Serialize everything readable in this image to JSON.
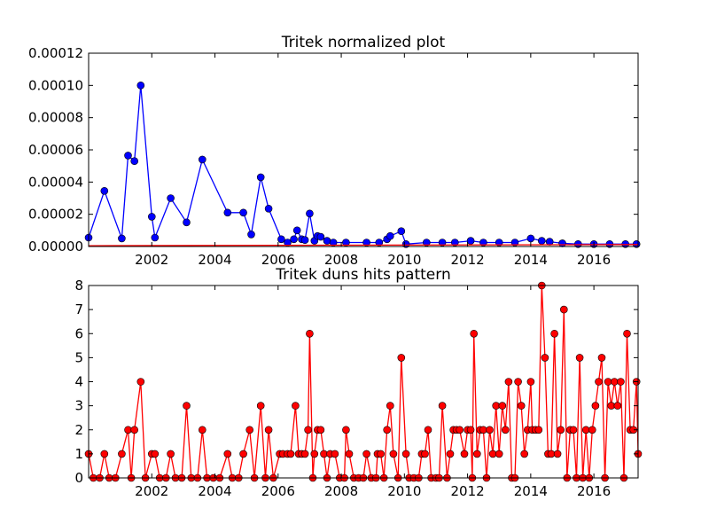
{
  "chart_data": [
    {
      "type": "line",
      "title": "Tritek normalized plot",
      "xlim": [
        2000.0,
        2017.4
      ],
      "ylim": [
        0,
        0.00012
      ],
      "xticks": [
        2002,
        2004,
        2006,
        2008,
        2010,
        2012,
        2014,
        2016
      ],
      "yticks": [
        "0.00000",
        "0.00002",
        "0.00004",
        "0.00006",
        "0.00008",
        "0.00010",
        "0.00012"
      ],
      "ytick_values": [
        0,
        2e-05,
        4e-05,
        6e-05,
        8e-05,
        0.0001,
        0.00012
      ],
      "series": [
        {
          "color": "#0000ff",
          "marker": "circle",
          "points": [
            [
              2000.0,
              5.5e-06
            ],
            [
              2000.5,
              3.45e-05
            ],
            [
              2001.05,
              5e-06
            ],
            [
              2001.25,
              5.65e-05
            ],
            [
              2001.45,
              5.3e-05
            ],
            [
              2001.65,
              0.0001
            ],
            [
              2002.0,
              1.85e-05
            ],
            [
              2002.1,
              5.5e-06
            ],
            [
              2002.6,
              3e-05
            ],
            [
              2003.1,
              1.5e-05
            ],
            [
              2003.6,
              5.4e-05
            ],
            [
              2004.4,
              2.1e-05
            ],
            [
              2004.9,
              2.1e-05
            ],
            [
              2005.15,
              7.5e-06
            ],
            [
              2005.45,
              4.3e-05
            ],
            [
              2005.7,
              2.35e-05
            ],
            [
              2006.1,
              4.5e-06
            ],
            [
              2006.3,
              2.5e-06
            ],
            [
              2006.5,
              4.5e-06
            ],
            [
              2006.6,
              1e-05
            ],
            [
              2006.75,
              4.5e-06
            ],
            [
              2006.85,
              4e-06
            ],
            [
              2007.0,
              2.05e-05
            ],
            [
              2007.15,
              3.5e-06
            ],
            [
              2007.25,
              6.5e-06
            ],
            [
              2007.35,
              6e-06
            ],
            [
              2007.55,
              3.5e-06
            ],
            [
              2007.75,
              2.5e-06
            ],
            [
              2008.15,
              2.5e-06
            ],
            [
              2008.8,
              2.5e-06
            ],
            [
              2009.2,
              2.5e-06
            ],
            [
              2009.45,
              4.5e-06
            ],
            [
              2009.55,
              6.5e-06
            ],
            [
              2009.9,
              9.5e-06
            ],
            [
              2010.05,
              1.5e-06
            ],
            [
              2010.7,
              2.5e-06
            ],
            [
              2011.2,
              2.5e-06
            ],
            [
              2011.6,
              2.5e-06
            ],
            [
              2012.1,
              3.5e-06
            ],
            [
              2012.5,
              2.5e-06
            ],
            [
              2013.0,
              2.5e-06
            ],
            [
              2013.5,
              2.5e-06
            ],
            [
              2014.0,
              5e-06
            ],
            [
              2014.35,
              3.5e-06
            ],
            [
              2014.6,
              3e-06
            ],
            [
              2015.0,
              2e-06
            ],
            [
              2015.5,
              1.5e-06
            ],
            [
              2016.0,
              1.5e-06
            ],
            [
              2016.5,
              1.5e-06
            ],
            [
              2017.0,
              1.5e-06
            ],
            [
              2017.35,
              1.5e-06
            ]
          ]
        },
        {
          "color": "#ff0000",
          "marker": "none",
          "points": [
            [
              2000.0,
              5e-07
            ],
            [
              2017.4,
              1.2e-06
            ]
          ]
        }
      ]
    },
    {
      "type": "line",
      "title": "Tritek duns hits pattern",
      "xlim": [
        2000.0,
        2017.4
      ],
      "ylim": [
        0,
        8
      ],
      "xticks": [
        2002,
        2004,
        2006,
        2008,
        2010,
        2012,
        2014,
        2016
      ],
      "yticks": [
        "0",
        "1",
        "2",
        "3",
        "4",
        "5",
        "6",
        "7",
        "8"
      ],
      "ytick_values": [
        0,
        1,
        2,
        3,
        4,
        5,
        6,
        7,
        8
      ],
      "series": [
        {
          "color": "#ff0000",
          "marker": "circle",
          "points": [
            [
              2000.0,
              1
            ],
            [
              2000.15,
              0
            ],
            [
              2000.35,
              0
            ],
            [
              2000.5,
              1
            ],
            [
              2000.65,
              0
            ],
            [
              2000.85,
              0
            ],
            [
              2001.05,
              1
            ],
            [
              2001.25,
              2
            ],
            [
              2001.35,
              0
            ],
            [
              2001.45,
              2
            ],
            [
              2001.65,
              4
            ],
            [
              2001.8,
              0
            ],
            [
              2002.0,
              1
            ],
            [
              2002.1,
              1
            ],
            [
              2002.25,
              0
            ],
            [
              2002.45,
              0
            ],
            [
              2002.6,
              1
            ],
            [
              2002.75,
              0
            ],
            [
              2002.95,
              0
            ],
            [
              2003.1,
              3
            ],
            [
              2003.25,
              0
            ],
            [
              2003.45,
              0
            ],
            [
              2003.6,
              2
            ],
            [
              2003.75,
              0
            ],
            [
              2003.95,
              0
            ],
            [
              2004.15,
              0
            ],
            [
              2004.4,
              1
            ],
            [
              2004.55,
              0
            ],
            [
              2004.75,
              0
            ],
            [
              2004.9,
              1
            ],
            [
              2005.1,
              2
            ],
            [
              2005.25,
              0
            ],
            [
              2005.45,
              3
            ],
            [
              2005.6,
              0
            ],
            [
              2005.7,
              2
            ],
            [
              2005.85,
              0
            ],
            [
              2006.05,
              1
            ],
            [
              2006.15,
              1
            ],
            [
              2006.3,
              1
            ],
            [
              2006.4,
              1
            ],
            [
              2006.55,
              3
            ],
            [
              2006.65,
              1
            ],
            [
              2006.75,
              1
            ],
            [
              2006.85,
              1
            ],
            [
              2006.95,
              2
            ],
            [
              2007.0,
              6
            ],
            [
              2007.1,
              0
            ],
            [
              2007.15,
              1
            ],
            [
              2007.25,
              2
            ],
            [
              2007.35,
              2
            ],
            [
              2007.45,
              1
            ],
            [
              2007.55,
              0
            ],
            [
              2007.65,
              1
            ],
            [
              2007.8,
              1
            ],
            [
              2007.95,
              0
            ],
            [
              2008.1,
              0
            ],
            [
              2008.15,
              2
            ],
            [
              2008.25,
              1
            ],
            [
              2008.4,
              0
            ],
            [
              2008.55,
              0
            ],
            [
              2008.7,
              0
            ],
            [
              2008.8,
              1
            ],
            [
              2008.95,
              0
            ],
            [
              2009.1,
              0
            ],
            [
              2009.15,
              1
            ],
            [
              2009.25,
              1
            ],
            [
              2009.35,
              0
            ],
            [
              2009.45,
              2
            ],
            [
              2009.55,
              3
            ],
            [
              2009.65,
              1
            ],
            [
              2009.8,
              0
            ],
            [
              2009.9,
              5
            ],
            [
              2010.05,
              1
            ],
            [
              2010.15,
              0
            ],
            [
              2010.3,
              0
            ],
            [
              2010.45,
              0
            ],
            [
              2010.55,
              1
            ],
            [
              2010.65,
              1
            ],
            [
              2010.75,
              2
            ],
            [
              2010.85,
              0
            ],
            [
              2011.0,
              0
            ],
            [
              2011.1,
              0
            ],
            [
              2011.2,
              3
            ],
            [
              2011.35,
              0
            ],
            [
              2011.45,
              1
            ],
            [
              2011.55,
              2
            ],
            [
              2011.65,
              2
            ],
            [
              2011.75,
              2
            ],
            [
              2011.9,
              1
            ],
            [
              2012.0,
              2
            ],
            [
              2012.1,
              2
            ],
            [
              2012.15,
              0
            ],
            [
              2012.2,
              6
            ],
            [
              2012.3,
              1
            ],
            [
              2012.4,
              2
            ],
            [
              2012.5,
              2
            ],
            [
              2012.6,
              0
            ],
            [
              2012.7,
              2
            ],
            [
              2012.8,
              1
            ],
            [
              2012.9,
              3
            ],
            [
              2013.0,
              1
            ],
            [
              2013.1,
              3
            ],
            [
              2013.2,
              2
            ],
            [
              2013.3,
              4
            ],
            [
              2013.4,
              0
            ],
            [
              2013.5,
              0
            ],
            [
              2013.6,
              4
            ],
            [
              2013.7,
              3
            ],
            [
              2013.8,
              1
            ],
            [
              2013.9,
              2
            ],
            [
              2014.0,
              4
            ],
            [
              2014.05,
              2
            ],
            [
              2014.15,
              2
            ],
            [
              2014.25,
              2
            ],
            [
              2014.35,
              8
            ],
            [
              2014.45,
              5
            ],
            [
              2014.55,
              1
            ],
            [
              2014.65,
              1
            ],
            [
              2014.75,
              6
            ],
            [
              2014.85,
              1
            ],
            [
              2014.95,
              2
            ],
            [
              2015.05,
              7
            ],
            [
              2015.15,
              0
            ],
            [
              2015.25,
              2
            ],
            [
              2015.35,
              2
            ],
            [
              2015.45,
              0
            ],
            [
              2015.55,
              5
            ],
            [
              2015.65,
              0
            ],
            [
              2015.75,
              2
            ],
            [
              2015.85,
              0
            ],
            [
              2015.95,
              2
            ],
            [
              2016.05,
              3
            ],
            [
              2016.15,
              4
            ],
            [
              2016.25,
              5
            ],
            [
              2016.35,
              0
            ],
            [
              2016.45,
              4
            ],
            [
              2016.55,
              3
            ],
            [
              2016.65,
              4
            ],
            [
              2016.75,
              3
            ],
            [
              2016.85,
              4
            ],
            [
              2016.95,
              0
            ],
            [
              2017.05,
              6
            ],
            [
              2017.15,
              2
            ],
            [
              2017.25,
              2
            ],
            [
              2017.35,
              4
            ],
            [
              2017.4,
              1
            ]
          ]
        }
      ]
    }
  ]
}
